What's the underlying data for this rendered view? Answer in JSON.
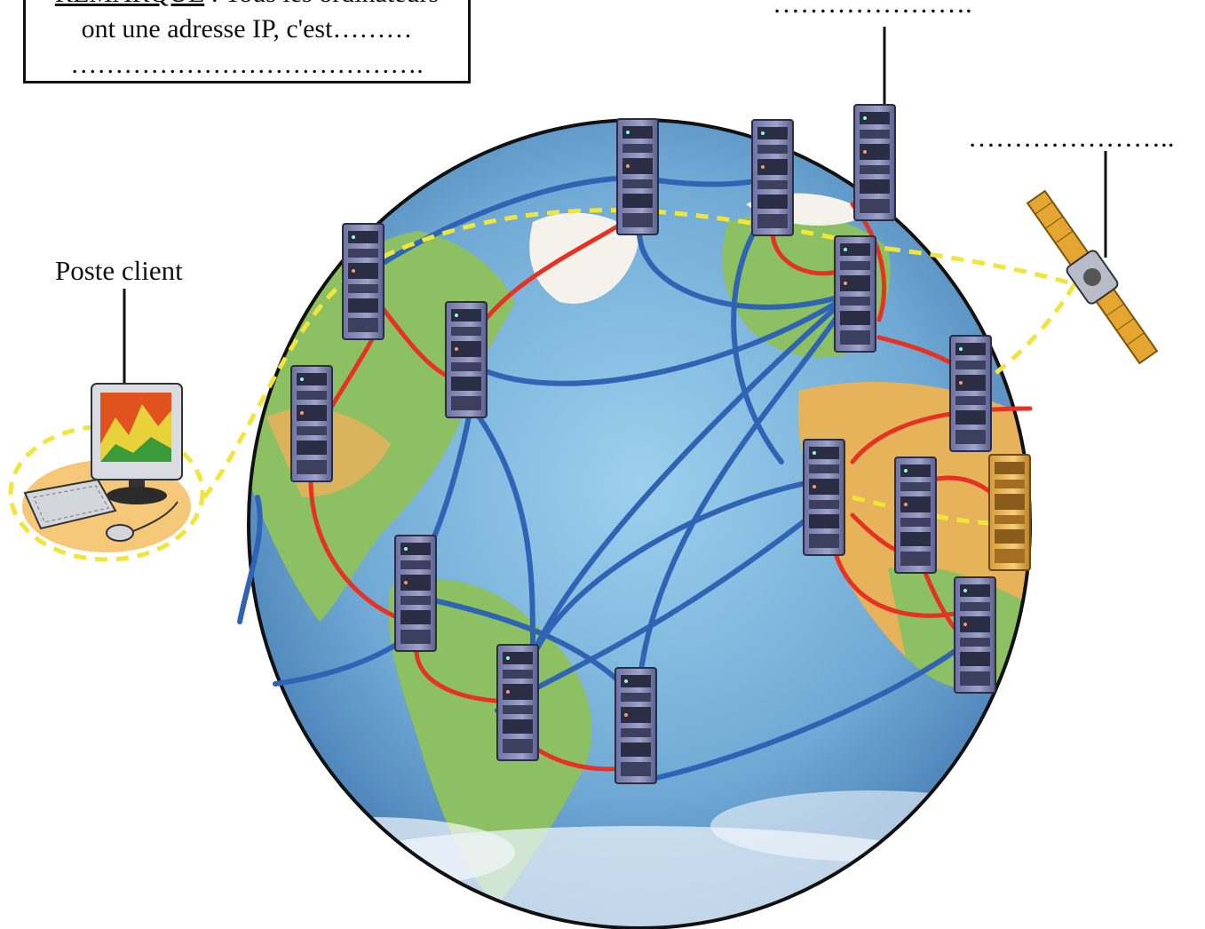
{
  "note": {
    "title": "REMARQUE",
    "line1": " : Tous les ordinateurs",
    "line2": "ont une adresse IP, c'est………",
    "line3": "…………………………………."
  },
  "labels": {
    "client": "Poste client",
    "server_blank": "………………….",
    "satellite_blank": "…………………..",
    "router_blank": ""
  },
  "colors": {
    "ocean": "#6fa9d4",
    "land": "#8cc063",
    "desert": "#e6b25a",
    "red_link": "#e53222",
    "blue_link": "#2f64b4",
    "yellow_path": "#f2e53a",
    "server": "#8a8fb8",
    "server_yellow": "#e8b84a"
  },
  "icons": [
    "globe-icon",
    "server-rack-icon",
    "satellite-icon",
    "computer-icon"
  ]
}
